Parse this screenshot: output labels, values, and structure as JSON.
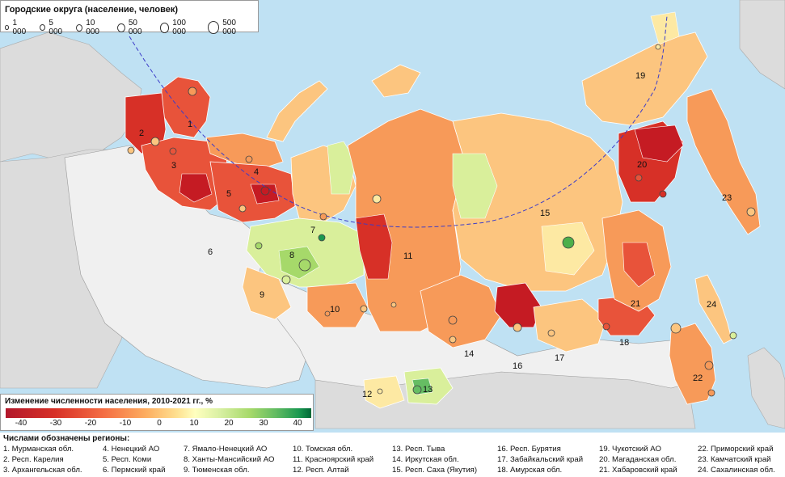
{
  "size_legend": {
    "title": "Городские округа (население, человек)",
    "items": [
      {
        "label": "1 000",
        "population": 1000
      },
      {
        "label": "5 000",
        "population": 5000
      },
      {
        "label": "10 000",
        "population": 10000
      },
      {
        "label": "50 000",
        "population": 50000
      },
      {
        "label": "100 000",
        "population": 100000
      },
      {
        "label": "500 000",
        "population": 500000
      }
    ]
  },
  "color_legend": {
    "title": "Изменение численности населения, 2010-2021 гг., %",
    "ticks": [
      "-40",
      "-30",
      "-20",
      "-10",
      "0",
      "10",
      "20",
      "30",
      "40"
    ],
    "colors": [
      "#b2182b",
      "#d73027",
      "#f46d43",
      "#fdae61",
      "#fee090",
      "#ffffbf",
      "#d9f0a3",
      "#a6d96a",
      "#66bd63",
      "#1a9850",
      "#006837"
    ]
  },
  "region_list": {
    "title": "Числами обозначены регионы:",
    "columns": [
      [
        "1. Мурманская обл.",
        "2. Респ. Карелия",
        "3. Архангельская обл."
      ],
      [
        "4. Ненецкий АО",
        "5. Респ. Коми",
        "6. Пермский край"
      ],
      [
        "7. Ямало-Ненецкий АО",
        "8. Ханты-Мансийский АО",
        "9. Тюменская обл."
      ],
      [
        "10. Томская обл.",
        "11. Красноярский край",
        "12. Респ. Алтай"
      ],
      [
        "13. Респ. Тыва",
        "14. Иркутская обл.",
        "15. Респ. Саха (Якутия)"
      ],
      [
        "16. Респ. Бурятия",
        "17. Забайкальский край",
        "18. Амурская обл."
      ],
      [
        "19. Чукотский АО",
        "20. Магаданская обл.",
        "21. Хабаровский край"
      ],
      [
        "22. Приморский край",
        "23. Камчатский край",
        "24. Сахалинская обл."
      ]
    ]
  },
  "map": {
    "region_numbers": [
      "1",
      "2",
      "3",
      "4",
      "5",
      "6",
      "7",
      "8",
      "9",
      "10",
      "11",
      "12",
      "13",
      "14",
      "15",
      "16",
      "17",
      "18",
      "19",
      "20",
      "21",
      "22",
      "23",
      "24"
    ],
    "colors": {
      "sea": "#bfe1f3",
      "land_other": "#dcdcdc",
      "region_outside": "#f0f0f0",
      "strong_decline": "#c51b23",
      "decline": "#e8533a",
      "mild_decline": "#f79a59",
      "small_decline": "#fcc57f",
      "stable": "#fde9a3",
      "growth": "#d9ef9b",
      "strong_growth": "#4daf4a"
    }
  }
}
